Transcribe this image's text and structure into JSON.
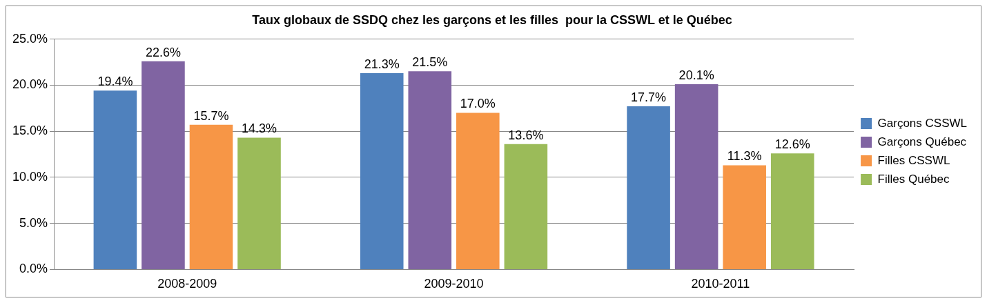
{
  "chart_data": {
    "type": "bar",
    "title": "Taux globaux de SSDQ chez les garçons et les filles  pour la CSSWL et le Québec",
    "categories": [
      "2008-2009",
      "2009-2010",
      "2010-2011"
    ],
    "series": [
      {
        "name": "Garçons CSSWL",
        "color": "#4f81bd",
        "values": [
          19.4,
          21.3,
          17.7
        ],
        "value_labels": [
          "19.4%",
          "21.3%",
          "17.7%"
        ]
      },
      {
        "name": "Garçons Québec",
        "color": "#8064a2",
        "values": [
          22.6,
          21.5,
          20.1
        ],
        "value_labels": [
          "22.6%",
          "21.5%",
          "20.1%"
        ]
      },
      {
        "name": "Filles CSSWL",
        "color": "#f79646",
        "values": [
          15.7,
          17.0,
          11.3
        ],
        "value_labels": [
          "15.7%",
          "17.0%",
          "11.3%"
        ]
      },
      {
        "name": "Filles Québec",
        "color": "#9bbb59",
        "values": [
          14.3,
          13.6,
          12.6
        ],
        "value_labels": [
          "14.3%",
          "13.6%",
          "12.6%"
        ]
      }
    ],
    "ylim": [
      0,
      25
    ],
    "yticks": [
      {
        "value": 0,
        "label": "0.0%"
      },
      {
        "value": 5,
        "label": "5.0%"
      },
      {
        "value": 10,
        "label": "10.0%"
      },
      {
        "value": 15,
        "label": "15.0%"
      },
      {
        "value": 20,
        "label": "20.0%"
      },
      {
        "value": 25,
        "label": "25.0%"
      }
    ],
    "grid": "y",
    "legend": "right"
  }
}
